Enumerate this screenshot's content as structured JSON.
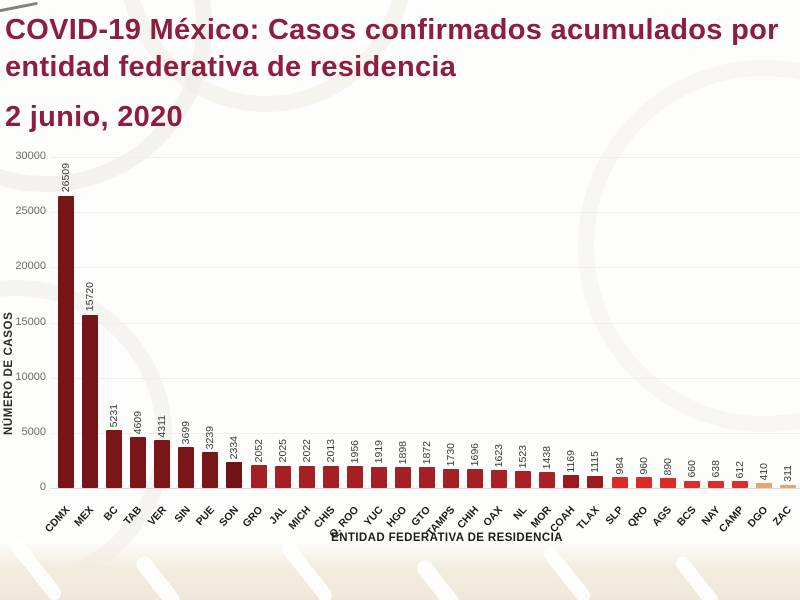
{
  "header": {
    "title_line1": "COVID-19 México: Casos confirmados acumulados por",
    "title_line2": "entidad federativa de residencia",
    "date": "2 junio, 2020",
    "title_color": "#8e1d3e"
  },
  "chart_data": {
    "type": "bar",
    "title": "COVID-19 México: Casos confirmados acumulados por entidad federativa de residencia",
    "subtitle_date": "2 junio, 2020",
    "xlabel": "ENTIDAD FEDERATIVA DE RESIDENCIA",
    "ylabel": "NÚMERO DE CASOS",
    "ylim": [
      0,
      30000
    ],
    "yticks": [
      0,
      5000,
      10000,
      15000,
      20000,
      25000,
      30000
    ],
    "grid": true,
    "legend": "none",
    "value_labels": "rotated-90-above-bars",
    "categories": [
      "CDMX",
      "MEX",
      "BC",
      "TAB",
      "VER",
      "SIN",
      "PUE",
      "SON",
      "GRO",
      "JAL",
      "MICH",
      "CHIS",
      "Q. ROO",
      "YUC",
      "HGO",
      "GTO",
      "TAMPS",
      "CHIH",
      "OAX",
      "NL",
      "MOR",
      "COAH",
      "TLAX",
      "SLP",
      "QRO",
      "AGS",
      "BCS",
      "NAY",
      "CAMP",
      "DGO",
      "ZAC"
    ],
    "values": [
      26509,
      15720,
      5231,
      4609,
      4311,
      3699,
      3239,
      2334,
      2052,
      2025,
      2022,
      2013,
      1956,
      1919,
      1898,
      1872,
      1730,
      1696,
      1623,
      1523,
      1438,
      1169,
      1115,
      984,
      960,
      890,
      660,
      638,
      612,
      410,
      311
    ],
    "bar_colors": [
      "#771419",
      "#771419",
      "#7a1519",
      "#7a1519",
      "#7a1519",
      "#7a1519",
      "#7a1519",
      "#701216",
      "#a42024",
      "#a42024",
      "#a42024",
      "#a42024",
      "#a42024",
      "#a42024",
      "#a42024",
      "#a42024",
      "#a42024",
      "#a42024",
      "#aa2125",
      "#aa2125",
      "#aa2125",
      "#991b20",
      "#991b20",
      "#da2a28",
      "#da2a28",
      "#da2a28",
      "#dd2d28",
      "#dd2d28",
      "#dd2d28",
      "#e5a469",
      "#e5a469"
    ]
  }
}
